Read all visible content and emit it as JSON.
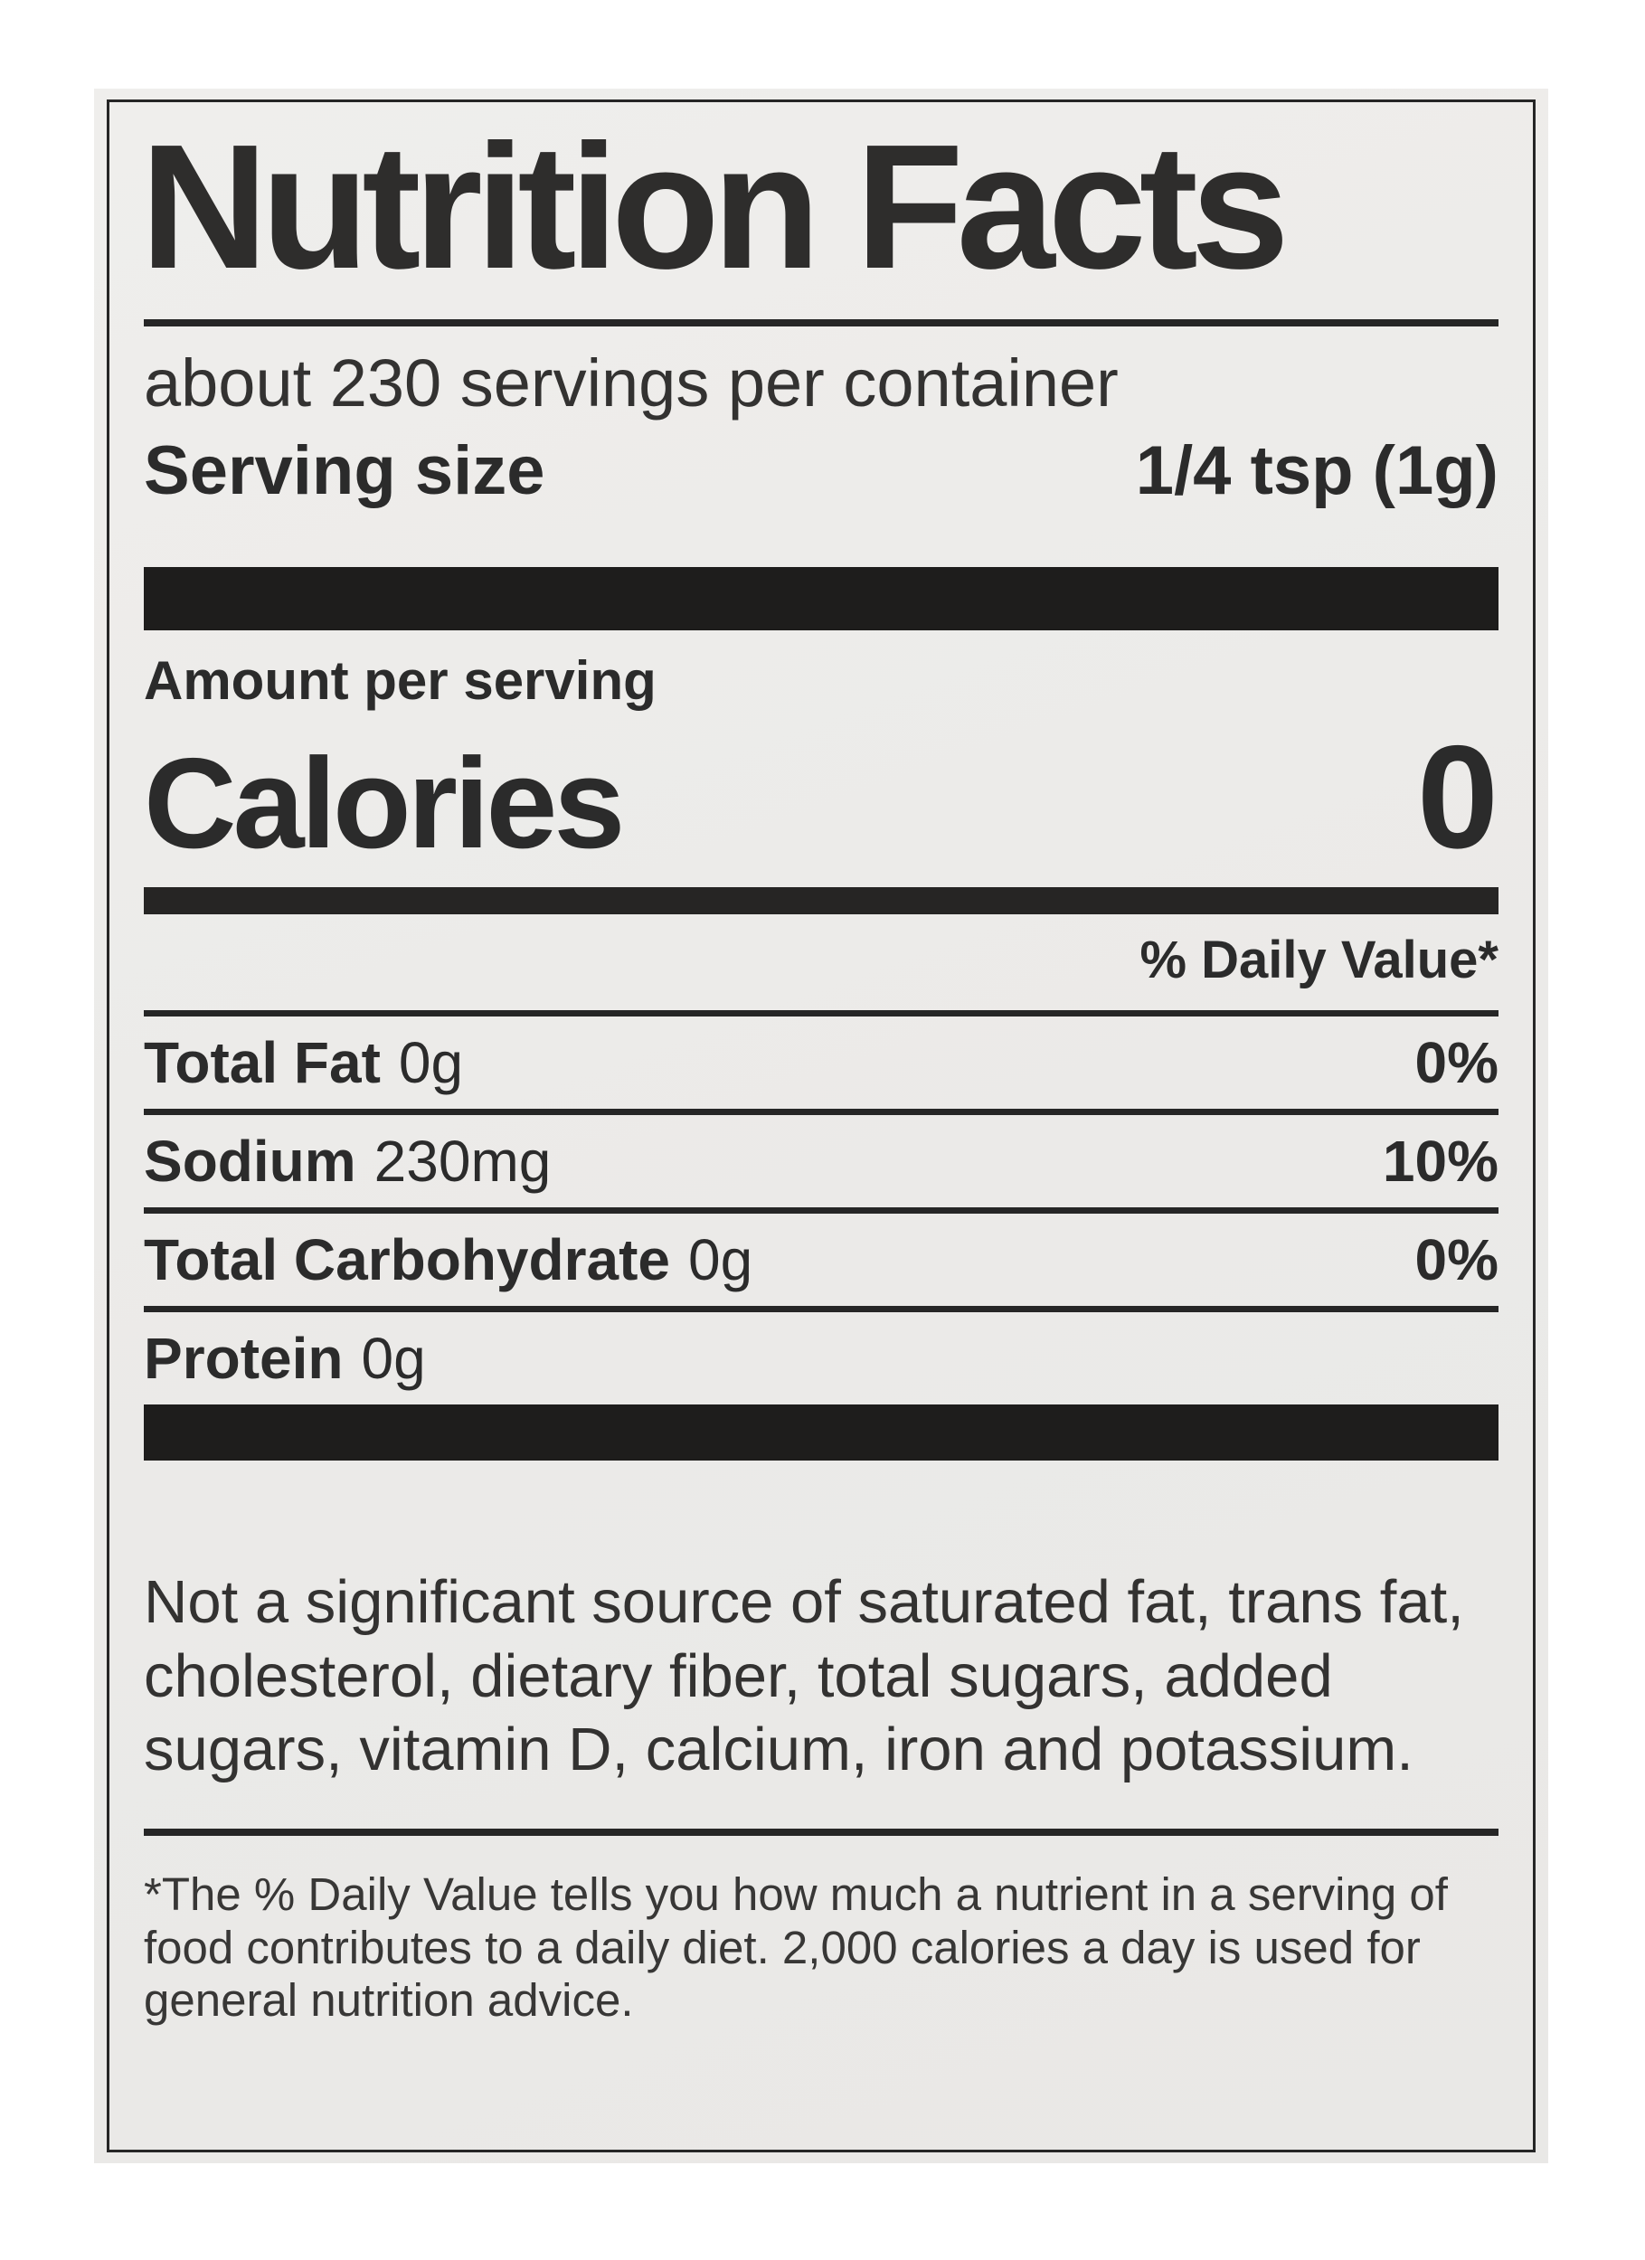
{
  "label": {
    "title": "Nutrition Facts",
    "servings_per_container": "about 230 servings per container",
    "serving_size": {
      "label": "Serving size",
      "value": "1/4 tsp (1g)"
    },
    "amount_per_serving": "Amount per serving",
    "calories": {
      "label": "Calories",
      "value": "0"
    },
    "daily_value_header": "% Daily Value*",
    "nutrients": [
      {
        "name": "Total Fat",
        "amount": "0g",
        "dv": "0%"
      },
      {
        "name": "Sodium",
        "amount": "230mg",
        "dv": "10%"
      },
      {
        "name": "Total Carbohydrate",
        "amount": "0g",
        "dv": "0%"
      },
      {
        "name": "Protein",
        "amount": "0g",
        "dv": ""
      }
    ],
    "not_significant_note": "Not a significant source of saturated fat, trans fat, cholesterol, dietary fiber, total sugars, added sugars, vitamin D, calcium, iron and potassium.",
    "footnote": "*The % Daily Value tells you how much a nutrient in a serving of food contributes to a daily diet. 2,000 calories a day is used for general nutrition advice."
  },
  "colors": {
    "ink": "#262626",
    "paper": "#edecea",
    "background": "#ffffff"
  }
}
